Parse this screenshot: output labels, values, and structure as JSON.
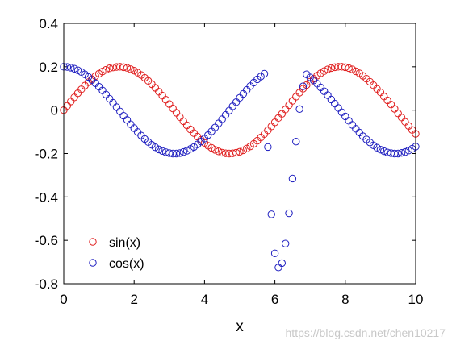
{
  "chart_data": {
    "type": "scatter",
    "xlabel": "x",
    "ylabel": "",
    "title": "",
    "xlim": [
      0,
      10
    ],
    "ylim": [
      -0.8,
      0.4
    ],
    "x_ticks": [
      0,
      2,
      4,
      6,
      8,
      10
    ],
    "y_ticks": [
      0.4,
      0.2,
      0,
      -0.2,
      -0.4,
      -0.6,
      -0.8
    ],
    "x_tick_labels": [
      "0",
      "2",
      "4",
      "6",
      "8",
      "10"
    ],
    "y_tick_labels": [
      "0.4",
      "0.2",
      "0",
      "-0.2",
      "-0.4",
      "-0.6",
      "-0.8"
    ],
    "grid": false,
    "box": true,
    "legend": {
      "placement": "bottom-left",
      "entries": [
        "sin(x)",
        "cos(x)"
      ]
    },
    "marker": "open-circle",
    "series": [
      {
        "name": "sin(x)",
        "color": "#e02020",
        "x": [
          0.0,
          0.1,
          0.2,
          0.3,
          0.4,
          0.5,
          0.6,
          0.7,
          0.8,
          0.9,
          1.0,
          1.1,
          1.2,
          1.3,
          1.4,
          1.5,
          1.6,
          1.7,
          1.8,
          1.9,
          2.0,
          2.1,
          2.2,
          2.3,
          2.4,
          2.5,
          2.6,
          2.7,
          2.8,
          2.9,
          3.0,
          3.1,
          3.2,
          3.3,
          3.4,
          3.5,
          3.6,
          3.7,
          3.8,
          3.9,
          4.0,
          4.1,
          4.2,
          4.3,
          4.4,
          4.5,
          4.6,
          4.7,
          4.8,
          4.9,
          5.0,
          5.1,
          5.2,
          5.3,
          5.4,
          5.5,
          5.6,
          5.7,
          5.8,
          5.9,
          6.0,
          6.1,
          6.2,
          6.3,
          6.4,
          6.5,
          6.6,
          6.7,
          6.8,
          6.9,
          7.0,
          7.1,
          7.2,
          7.3,
          7.4,
          7.5,
          7.6,
          7.7,
          7.8,
          7.9,
          8.0,
          8.1,
          8.2,
          8.3,
          8.4,
          8.5,
          8.6,
          8.7,
          8.8,
          8.9,
          9.0,
          9.1,
          9.2,
          9.3,
          9.4,
          9.5,
          9.6,
          9.7,
          9.8,
          9.9,
          10.0
        ],
        "y": [
          0.0,
          0.02,
          0.04,
          0.059,
          0.078,
          0.096,
          0.113,
          0.129,
          0.143,
          0.157,
          0.168,
          0.178,
          0.186,
          0.193,
          0.197,
          0.199,
          0.2,
          0.198,
          0.195,
          0.189,
          0.182,
          0.173,
          0.162,
          0.149,
          0.135,
          0.12,
          0.103,
          0.085,
          0.067,
          0.048,
          0.028,
          0.008,
          -0.012,
          -0.032,
          -0.051,
          -0.07,
          -0.089,
          -0.106,
          -0.122,
          -0.137,
          -0.151,
          -0.164,
          -0.174,
          -0.183,
          -0.19,
          -0.196,
          -0.199,
          -0.2,
          -0.199,
          -0.196,
          -0.192,
          -0.185,
          -0.177,
          -0.167,
          -0.155,
          -0.141,
          -0.126,
          -0.11,
          -0.093,
          -0.075,
          -0.056,
          -0.036,
          -0.017,
          0.003,
          0.023,
          0.043,
          0.062,
          0.081,
          0.099,
          0.116,
          0.131,
          0.145,
          0.159,
          0.17,
          0.18,
          0.188,
          0.194,
          0.198,
          0.2,
          0.2,
          0.198,
          0.194,
          0.188,
          0.179,
          0.17,
          0.158,
          0.145,
          0.131,
          0.115,
          0.098,
          0.082,
          0.063,
          0.045,
          0.026,
          0.006,
          -0.015,
          -0.034,
          -0.054,
          -0.073,
          -0.091,
          -0.109
        ]
      },
      {
        "name": "cos(x)",
        "color": "#2020c0",
        "x": [
          0.0,
          0.1,
          0.2,
          0.3,
          0.4,
          0.5,
          0.6,
          0.7,
          0.8,
          0.9,
          1.0,
          1.1,
          1.2,
          1.3,
          1.4,
          1.5,
          1.6,
          1.7,
          1.8,
          1.9,
          2.0,
          2.1,
          2.2,
          2.3,
          2.4,
          2.5,
          2.6,
          2.7,
          2.8,
          2.9,
          3.0,
          3.1,
          3.2,
          3.3,
          3.4,
          3.5,
          3.6,
          3.7,
          3.8,
          3.9,
          4.0,
          4.1,
          4.2,
          4.3,
          4.4,
          4.5,
          4.6,
          4.7,
          4.8,
          4.9,
          5.0,
          5.1,
          5.2,
          5.3,
          5.4,
          5.5,
          5.6,
          5.7,
          5.8,
          5.9,
          6.0,
          6.1,
          6.2,
          6.3,
          6.4,
          6.5,
          6.6,
          6.7,
          6.8,
          6.9,
          7.0,
          7.1,
          7.2,
          7.3,
          7.4,
          7.5,
          7.6,
          7.7,
          7.8,
          7.9,
          8.0,
          8.1,
          8.2,
          8.3,
          8.4,
          8.5,
          8.6,
          8.7,
          8.8,
          8.9,
          9.0,
          9.1,
          9.2,
          9.3,
          9.4,
          9.5,
          9.6,
          9.7,
          9.8,
          9.9,
          10.0
        ],
        "y": [
          0.2,
          0.199,
          0.196,
          0.191,
          0.184,
          0.176,
          0.165,
          0.153,
          0.139,
          0.124,
          0.108,
          0.091,
          0.072,
          0.053,
          0.034,
          0.014,
          -0.006,
          -0.026,
          -0.045,
          -0.065,
          -0.083,
          -0.101,
          -0.117,
          -0.133,
          -0.147,
          -0.16,
          -0.171,
          -0.181,
          -0.188,
          -0.194,
          -0.198,
          -0.2,
          -0.2,
          -0.198,
          -0.193,
          -0.187,
          -0.179,
          -0.17,
          -0.158,
          -0.145,
          -0.131,
          -0.115,
          -0.098,
          -0.08,
          -0.061,
          -0.042,
          -0.022,
          -0.002,
          0.018,
          0.037,
          0.057,
          0.075,
          0.093,
          0.111,
          0.127,
          0.142,
          0.155,
          0.168,
          -0.17,
          -0.48,
          -0.66,
          -0.725,
          -0.705,
          -0.615,
          -0.475,
          -0.315,
          -0.145,
          0.005,
          0.11,
          0.165,
          0.151,
          0.137,
          0.122,
          0.105,
          0.087,
          0.069,
          0.049,
          0.03,
          0.01,
          -0.01,
          -0.029,
          -0.049,
          -0.068,
          -0.086,
          -0.103,
          -0.12,
          -0.135,
          -0.149,
          -0.162,
          -0.173,
          -0.182,
          -0.189,
          -0.195,
          -0.198,
          -0.2,
          -0.2,
          -0.197,
          -0.193,
          -0.186,
          -0.178,
          -0.168
        ]
      }
    ],
    "watermark": "https://blog.csdn.net/chen10217"
  }
}
